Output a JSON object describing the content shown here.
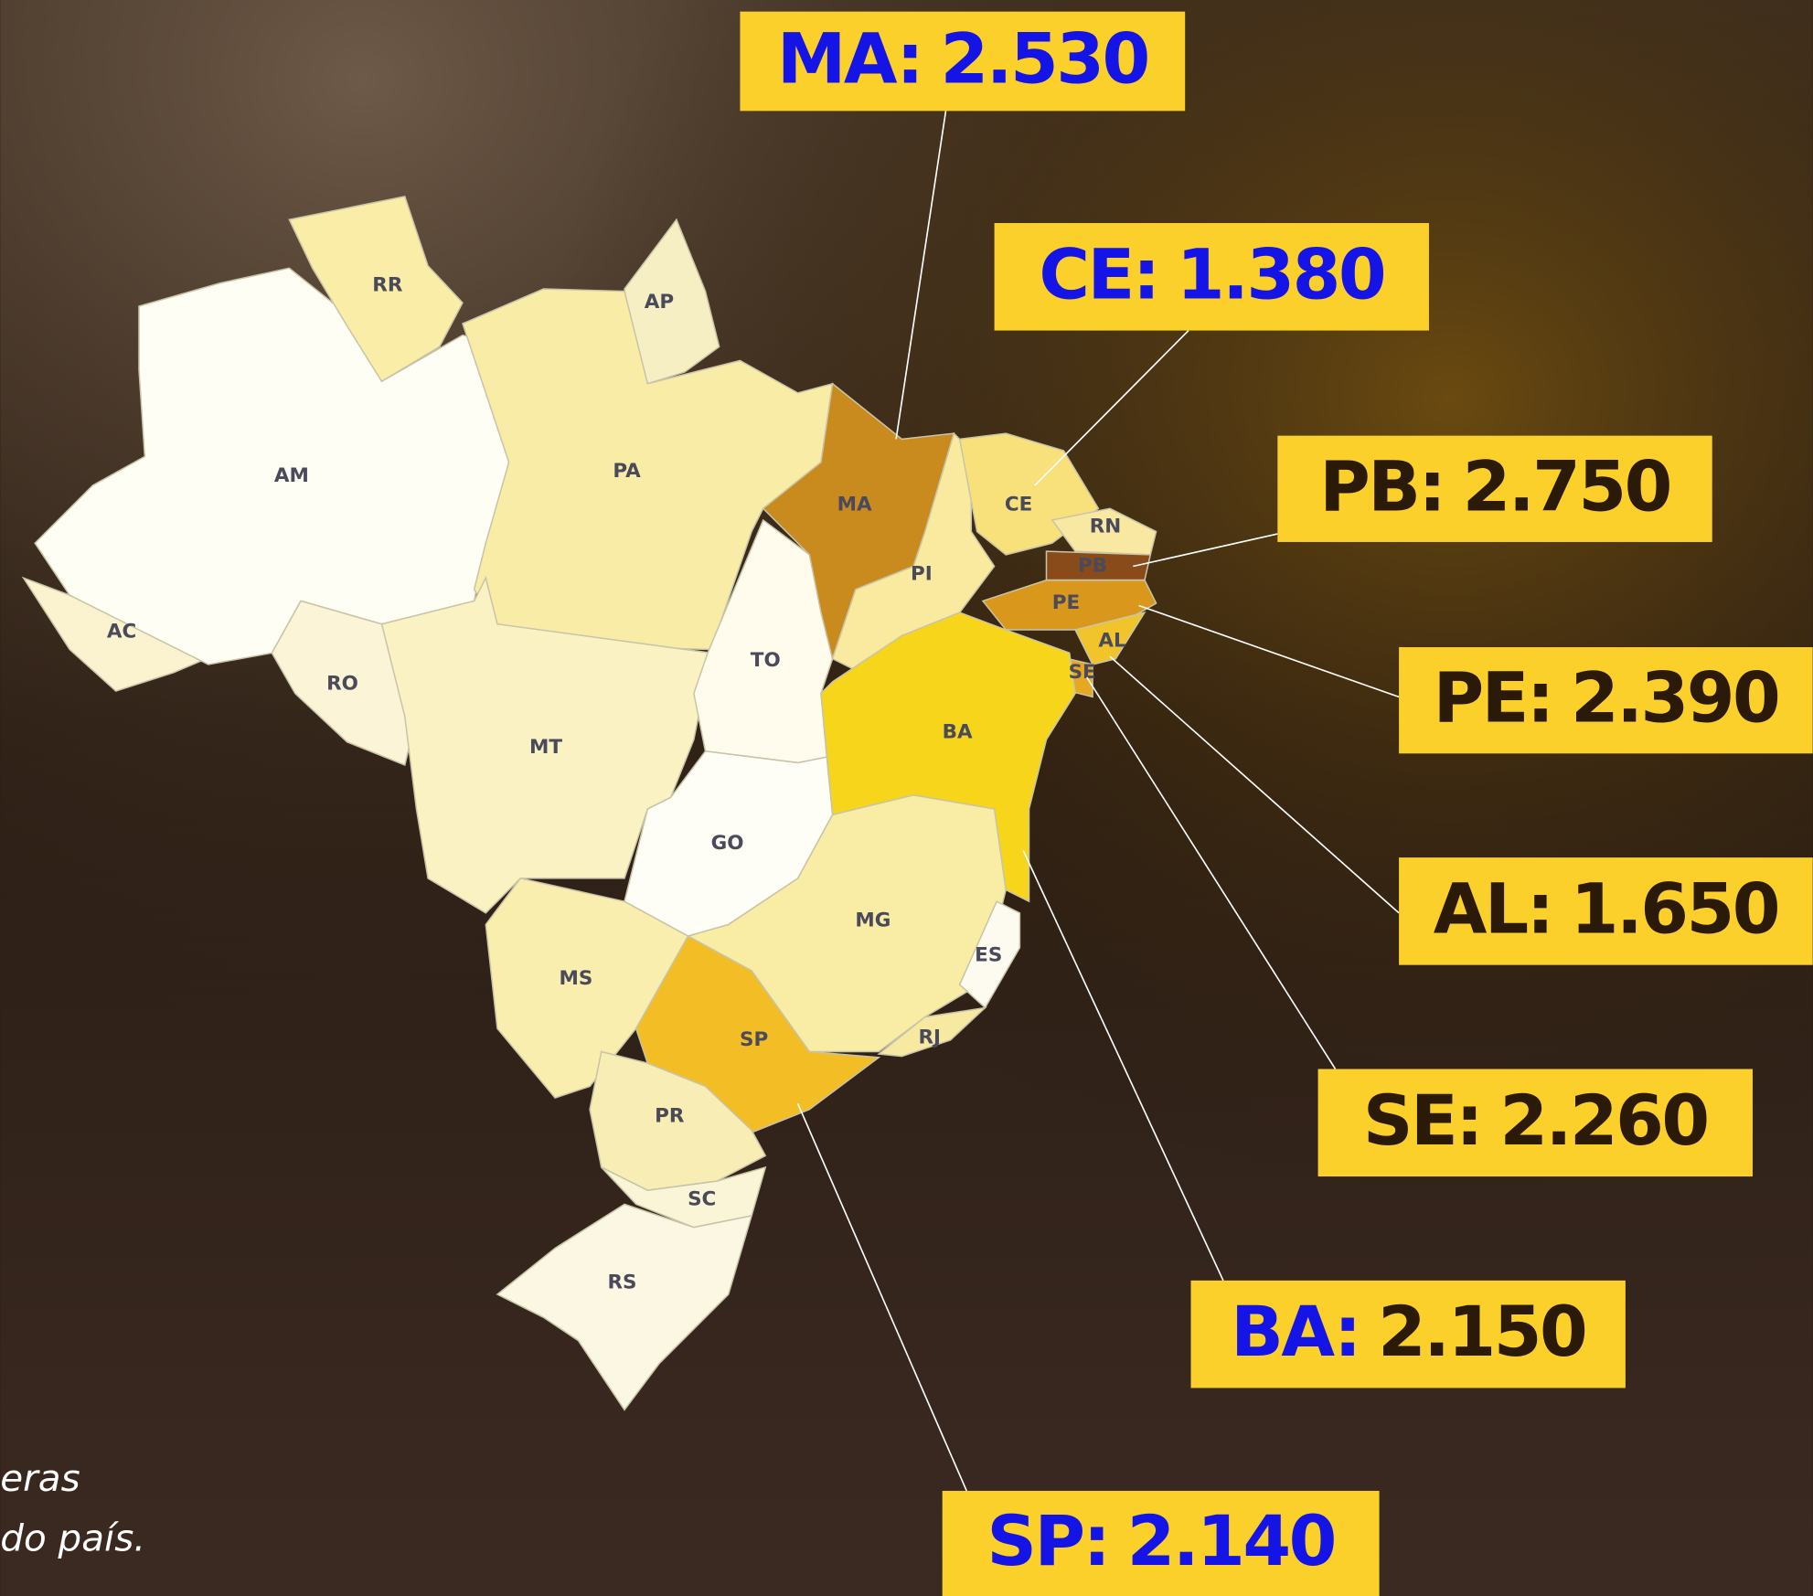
{
  "map": {
    "states": [
      {
        "label": "AC",
        "color": "#fbf3d0"
      },
      {
        "label": "AM",
        "color": "#fffef5"
      },
      {
        "label": "RR",
        "color": "#f9eda8"
      },
      {
        "label": "AP",
        "color": "#f6efc4"
      },
      {
        "label": "PA",
        "color": "#f9eca6"
      },
      {
        "label": "RO",
        "color": "#fbf4d6"
      },
      {
        "label": "MT",
        "color": "#fbf2c4"
      },
      {
        "label": "TO",
        "color": "#fffcee"
      },
      {
        "label": "MA",
        "color": "#c98a1e"
      },
      {
        "label": "PI",
        "color": "#f9eaa0"
      },
      {
        "label": "CE",
        "color": "#f8e07a"
      },
      {
        "label": "RN",
        "color": "#f8e8a2"
      },
      {
        "label": "PB",
        "color": "#8a4b1a"
      },
      {
        "label": "PE",
        "color": "#d9981c"
      },
      {
        "label": "AL",
        "color": "#f0c42a"
      },
      {
        "label": "SE",
        "color": "#e6a820"
      },
      {
        "label": "BA",
        "color": "#f7d51b"
      },
      {
        "label": "GO",
        "color": "#fffef6"
      },
      {
        "label": "MS",
        "color": "#f9eeae"
      },
      {
        "label": "MG",
        "color": "#f9eca4"
      },
      {
        "label": "ES",
        "color": "#fdfbef"
      },
      {
        "label": "RJ",
        "color": "#f7e9a2"
      },
      {
        "label": "SP",
        "color": "#f2bd25"
      },
      {
        "label": "PR",
        "color": "#f8edb4"
      },
      {
        "label": "SC",
        "color": "#fbf5d8"
      },
      {
        "label": "RS",
        "color": "#fcf7e2"
      }
    ]
  },
  "callouts": [
    {
      "abbr": "MA:",
      "value": "2.530",
      "abbr_color": "#1414e6",
      "value_color": "#1414e6"
    },
    {
      "abbr": "CE:",
      "value": "1.380",
      "abbr_color": "#1414e6",
      "value_color": "#1414e6"
    },
    {
      "abbr": "PB:",
      "value": "2.750",
      "abbr_color": "#2b1a08",
      "value_color": "#2b1a08"
    },
    {
      "abbr": "PE:",
      "value": "2.390",
      "abbr_color": "#2b1a08",
      "value_color": "#2b1a08"
    },
    {
      "abbr": "AL:",
      "value": "1.650",
      "abbr_color": "#2b1a08",
      "value_color": "#2b1a08"
    },
    {
      "abbr": "SE:",
      "value": "2.260",
      "abbr_color": "#2b1a08",
      "value_color": "#2b1a08"
    },
    {
      "abbr": "BA:",
      "value": "2.150",
      "abbr_color": "#1414e6",
      "value_color": "#2b1a08"
    },
    {
      "abbr": "SP:",
      "value": "2.140",
      "abbr_color": "#1414e6",
      "value_color": "#1414e6"
    }
  ],
  "caption": [
    "eras",
    "do país."
  ]
}
